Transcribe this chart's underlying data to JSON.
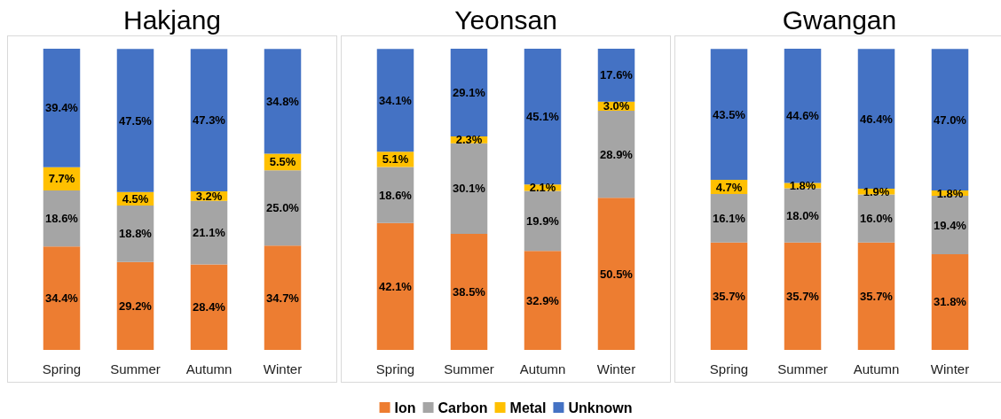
{
  "chart_data": [
    {
      "type": "bar",
      "title": "Hakjang",
      "stacked": true,
      "legend": false,
      "categories": [
        "Spring",
        "Summer",
        "Autumn",
        "Winter"
      ],
      "series": [
        {
          "color": "#ed7d31",
          "values": [
            34.4,
            29.2,
            28.4,
            34.7
          ],
          "value_labels": [
            "34.4%",
            "29.2%",
            "28.4%",
            "34.7%"
          ]
        },
        {
          "color": "#a5a5a5",
          "values": [
            18.6,
            18.8,
            21.1,
            25.0
          ],
          "value_labels": [
            "18.6%",
            "18.8%",
            "21.1%",
            "25.0%"
          ]
        },
        {
          "color": "#ffc000",
          "values": [
            7.7,
            4.5,
            3.2,
            5.5
          ],
          "value_labels": [
            "7.7%",
            "4.5%",
            "3.2%",
            "5.5%"
          ]
        },
        {
          "color": "#4472c4",
          "values": [
            39.4,
            47.5,
            47.3,
            34.8
          ],
          "value_labels": [
            "39.4%",
            "47.5%",
            "47.3%",
            "34.8%"
          ]
        }
      ]
    },
    {
      "type": "bar",
      "title": "Yeonsan",
      "stacked": true,
      "legend": "bottom",
      "categories": [
        "Spring",
        "Summer",
        "Autumn",
        "Winter"
      ],
      "series": [
        {
          "name": "Ion",
          "color": "#ed7d31",
          "values": [
            42.1,
            38.5,
            32.9,
            50.5
          ],
          "value_labels": [
            "42.1%",
            "38.5%",
            "32.9%",
            "50.5%"
          ]
        },
        {
          "name": "Carbon",
          "color": "#a5a5a5",
          "values": [
            18.6,
            30.1,
            19.9,
            28.9
          ],
          "value_labels": [
            "18.6%",
            "30.1%",
            "19.9%",
            "28.9%"
          ]
        },
        {
          "name": "Metal",
          "color": "#ffc000",
          "values": [
            5.1,
            2.3,
            2.1,
            3.0
          ],
          "value_labels": [
            "5.1%",
            "2.3%",
            "2.1%",
            "3.0%"
          ]
        },
        {
          "name": "Unknown",
          "color": "#4472c4",
          "values": [
            34.1,
            29.1,
            45.1,
            17.6
          ],
          "value_labels": [
            "34.1%",
            "29.1%",
            "45.1%",
            "17.6%"
          ]
        }
      ]
    },
    {
      "type": "bar",
      "title": "Gwangan",
      "stacked": true,
      "legend": false,
      "categories": [
        "Spring",
        "Summer",
        "Autumn",
        "Winter"
      ],
      "series": [
        {
          "color": "#ed7d31",
          "values": [
            35.7,
            35.7,
            35.7,
            31.8
          ],
          "value_labels": [
            "35.7%",
            "35.7%",
            "35.7%",
            "31.8%"
          ]
        },
        {
          "color": "#a5a5a5",
          "values": [
            16.1,
            18.0,
            16.0,
            19.4
          ],
          "value_labels": [
            "16.1%",
            "18.0%",
            "16.0%",
            "19.4%"
          ]
        },
        {
          "color": "#ffc000",
          "values": [
            4.7,
            1.8,
            1.9,
            1.8
          ],
          "value_labels": [
            "4.7%",
            "1.8%",
            "1.9%",
            "1.8%"
          ]
        },
        {
          "color": "#4472c4",
          "values": [
            43.5,
            44.6,
            46.4,
            47.0
          ],
          "value_labels": [
            "43.5%",
            "44.6%",
            "46.4%",
            "47.0%"
          ]
        }
      ]
    }
  ]
}
